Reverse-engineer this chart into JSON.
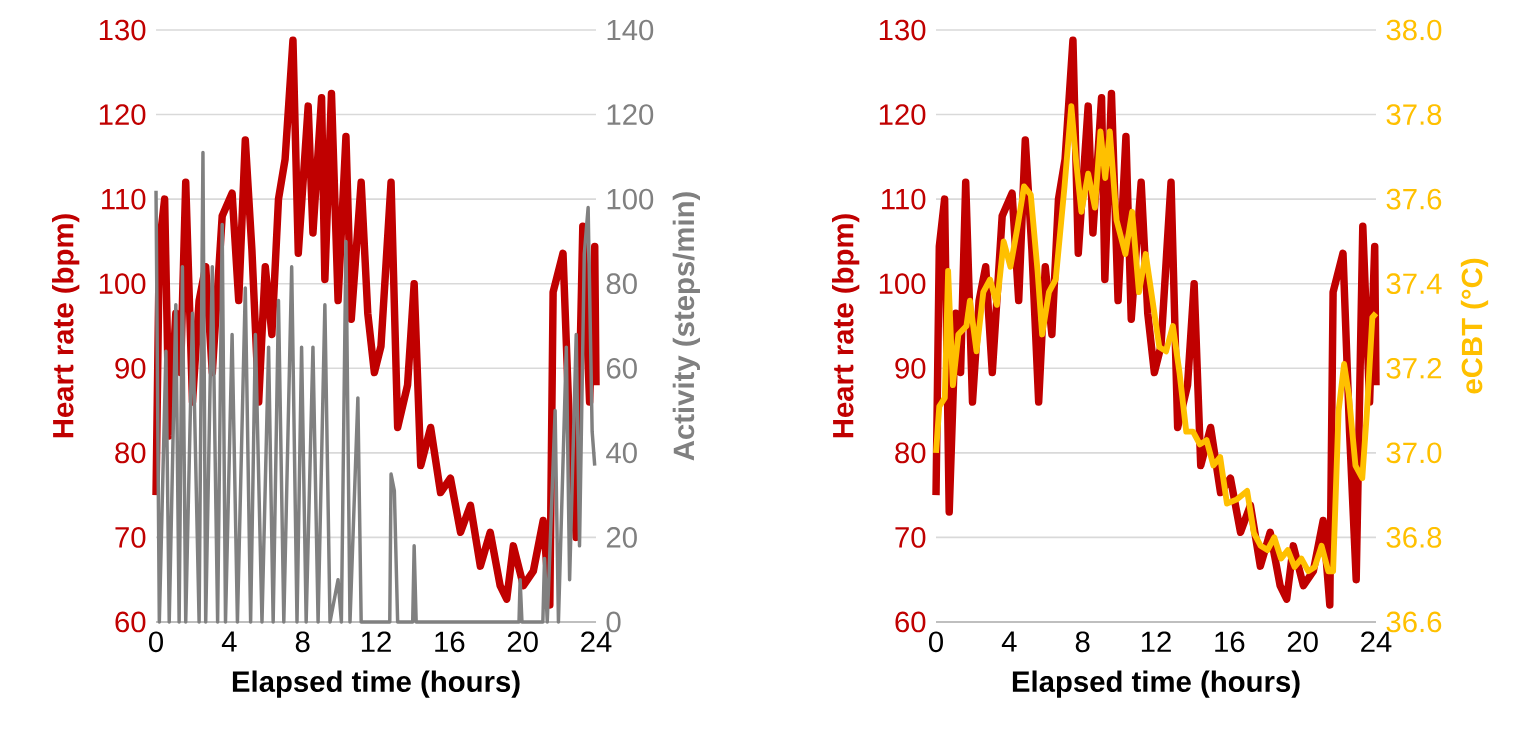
{
  "chart_data": [
    {
      "type": "line",
      "xlabel": "Elapsed time (hours)",
      "ylabel": "Heart rate (bpm)",
      "y2label": "Activity (steps/min)",
      "grid": "y",
      "xlim": [
        0,
        24
      ],
      "xticks": [
        0,
        4,
        8,
        12,
        16,
        20,
        24
      ],
      "ylim": [
        60,
        130
      ],
      "yticks": [
        60,
        70,
        80,
        90,
        100,
        110,
        120,
        130
      ],
      "y2lim": [
        0,
        140
      ],
      "y2ticks": [
        0,
        20,
        40,
        60,
        80,
        100,
        120,
        140
      ],
      "series": [
        {
          "color": "#c00000",
          "x": [
            0,
            0.18,
            0.47,
            0.72,
            1.08,
            1.34,
            1.62,
            1.99,
            2.35,
            2.71,
            3.07,
            3.61,
            4.15,
            4.51,
            4.87,
            5.23,
            5.6,
            5.96,
            6.32,
            6.68,
            7.04,
            7.47,
            7.76,
            8.3,
            8.56,
            9.03,
            9.21,
            9.57,
            9.93,
            10.36,
            10.65,
            11.19,
            11.55,
            11.91,
            12.27,
            12.82,
            13.18,
            13.72,
            14.08,
            14.44,
            14.98,
            15.52,
            16.06,
            16.61,
            17.15,
            17.69,
            18.23,
            18.77,
            19.13,
            19.49,
            20.04,
            20.58,
            21.12,
            21.48,
            21.66,
            22.2,
            22.56,
            22.92,
            23.28,
            23.65,
            23.93,
            24
          ],
          "values": [
            75,
            104.4,
            110,
            82,
            96.5,
            89.5,
            112,
            86,
            98,
            102,
            89.5,
            108,
            110.7,
            98,
            117,
            104,
            86,
            102,
            94,
            110,
            114.7,
            128.8,
            103.6,
            121,
            106,
            122,
            100.5,
            122.5,
            98,
            117.4,
            95.8,
            112,
            96.5,
            89.5,
            92.6,
            112,
            83,
            88,
            100,
            78.5,
            83,
            75.3,
            77,
            70.6,
            73.8,
            66.6,
            70.6,
            64.3,
            62.7,
            69,
            64.3,
            66,
            72,
            62,
            99,
            103.6,
            82.4,
            70,
            106.8,
            86,
            104.4,
            88
          ]
        },
        {
          "color": "#808080",
          "axis": "y2",
          "x": [
            0,
            0.18,
            0.54,
            0.72,
            1.08,
            1.26,
            1.44,
            1.62,
            1.99,
            2.35,
            2.56,
            2.71,
            3.07,
            3.36,
            3.61,
            3.79,
            4.15,
            4.44,
            4.87,
            5.16,
            5.42,
            5.78,
            6.14,
            6.39,
            6.68,
            6.97,
            7.4,
            7.69,
            7.94,
            8.19,
            8.56,
            8.84,
            9.21,
            9.49,
            9.93,
            10.11,
            10.36,
            10.58,
            11.01,
            11.19,
            12.75,
            12.82,
            13.0,
            13.18,
            14.0,
            14.08,
            14.19,
            19.8,
            19.86,
            19.96,
            21.1,
            21.19,
            21.34,
            21.77,
            21.95,
            22.38,
            22.56,
            22.92,
            23.1,
            23.36,
            23.57,
            23.79,
            23.93
          ],
          "values": [
            102,
            0,
            64,
            0,
            75,
            0,
            84,
            0,
            73,
            0,
            111,
            0,
            84,
            0,
            94,
            0,
            68,
            0,
            79,
            0,
            68,
            0,
            65,
            0,
            76,
            0,
            84,
            0,
            65,
            0,
            65,
            0,
            75,
            0,
            10,
            0,
            90,
            0,
            53,
            0,
            0,
            35,
            31,
            0,
            0,
            18,
            0,
            0,
            10,
            0,
            0,
            15,
            0,
            50,
            0,
            65,
            10,
            68,
            18,
            87,
            98,
            45,
            37
          ]
        }
      ]
    },
    {
      "type": "line",
      "xlabel": "Elapsed time (hours)",
      "ylabel": "Heart rate (bpm)",
      "y2label": "eCBT (°C)",
      "grid": "y",
      "xlim": [
        0,
        24
      ],
      "xticks": [
        0,
        4,
        8,
        12,
        16,
        20,
        24
      ],
      "ylim": [
        60,
        130
      ],
      "yticks": [
        60,
        70,
        80,
        90,
        100,
        110,
        120,
        130
      ],
      "y2lim": [
        36.6,
        38.0
      ],
      "y2ticks": [
        {
          "value": 36.6,
          "label": "36.6"
        },
        {
          "value": 36.8,
          "label": "36.8"
        },
        {
          "value": 37.0,
          "label": "37.0"
        },
        {
          "value": 37.2,
          "label": "37.2"
        },
        {
          "value": 37.4,
          "label": "37.4"
        },
        {
          "value": 37.6,
          "label": "37.6"
        },
        {
          "value": 37.8,
          "label": "37.8"
        },
        {
          "value": 38.0,
          "label": "38.0"
        }
      ],
      "series": [
        {
          "color": "#c00000",
          "x": [
            0,
            0.18,
            0.47,
            0.72,
            1.08,
            1.34,
            1.62,
            1.99,
            2.35,
            2.71,
            3.07,
            3.61,
            4.15,
            4.51,
            4.87,
            5.23,
            5.6,
            5.96,
            6.32,
            6.68,
            7.04,
            7.47,
            7.76,
            8.3,
            8.56,
            9.03,
            9.21,
            9.57,
            9.93,
            10.36,
            10.65,
            11.19,
            11.55,
            11.91,
            12.27,
            12.82,
            13.18,
            13.72,
            14.08,
            14.44,
            14.98,
            15.52,
            16.06,
            16.61,
            17.15,
            17.69,
            18.23,
            18.77,
            19.13,
            19.49,
            20.04,
            20.58,
            21.12,
            21.48,
            21.66,
            22.2,
            22.56,
            22.92,
            23.28,
            23.65,
            23.93,
            24
          ],
          "values": [
            75,
            104.4,
            110,
            73,
            96.5,
            89.5,
            112,
            86,
            98,
            102,
            89.5,
            108,
            110.7,
            98,
            117,
            104,
            86,
            102,
            94,
            110,
            114.7,
            128.8,
            103.6,
            121,
            106,
            122,
            100.5,
            122.5,
            98,
            117.4,
            95.8,
            112,
            96.5,
            89.5,
            92.6,
            112,
            83,
            88,
            100,
            78.5,
            83,
            75.3,
            77,
            70.6,
            73.8,
            66.6,
            70.6,
            64.3,
            62.7,
            69,
            64.3,
            66,
            72,
            62,
            99,
            103.6,
            82.4,
            65,
            106.8,
            86,
            104.4,
            88
          ]
        },
        {
          "color": "#ffc000",
          "axis": "y2",
          "x": [
            0,
            0.18,
            0.48,
            0.66,
            0.92,
            1.22,
            1.66,
            1.85,
            2.21,
            2.58,
            2.95,
            3.32,
            3.69,
            4.06,
            4.43,
            4.8,
            5.17,
            5.54,
            5.79,
            6.16,
            6.53,
            7.01,
            7.38,
            7.64,
            7.93,
            8.3,
            8.67,
            8.97,
            9.23,
            9.48,
            9.85,
            10.33,
            10.7,
            11.07,
            11.44,
            11.81,
            12.18,
            12.55,
            12.92,
            13.28,
            13.65,
            14.02,
            14.39,
            14.76,
            15.13,
            15.5,
            15.87,
            16.42,
            16.97,
            17.34,
            17.71,
            18.08,
            18.45,
            18.82,
            19.19,
            19.56,
            19.93,
            20.3,
            20.66,
            21.03,
            21.4,
            21.66,
            21.96,
            22.26,
            22.51,
            22.88,
            23.25,
            23.51,
            23.8,
            24
          ],
          "values": [
            37.0,
            37.11,
            37.13,
            37.43,
            37.16,
            37.28,
            37.3,
            37.36,
            37.24,
            37.38,
            37.41,
            37.35,
            37.5,
            37.44,
            37.53,
            37.63,
            37.61,
            37.43,
            37.28,
            37.38,
            37.41,
            37.63,
            37.82,
            37.69,
            37.57,
            37.66,
            37.58,
            37.76,
            37.65,
            37.76,
            37.55,
            37.47,
            37.57,
            37.38,
            37.47,
            37.36,
            37.25,
            37.24,
            37.3,
            37.19,
            37.05,
            37.05,
            37.02,
            37.03,
            36.97,
            36.99,
            36.88,
            36.89,
            36.91,
            36.81,
            36.78,
            36.77,
            36.8,
            36.75,
            36.77,
            36.73,
            36.75,
            36.72,
            36.73,
            36.78,
            36.72,
            36.72,
            37.1,
            37.21,
            37.14,
            36.97,
            36.94,
            37.1,
            37.32,
            37.33
          ]
        }
      ]
    }
  ]
}
